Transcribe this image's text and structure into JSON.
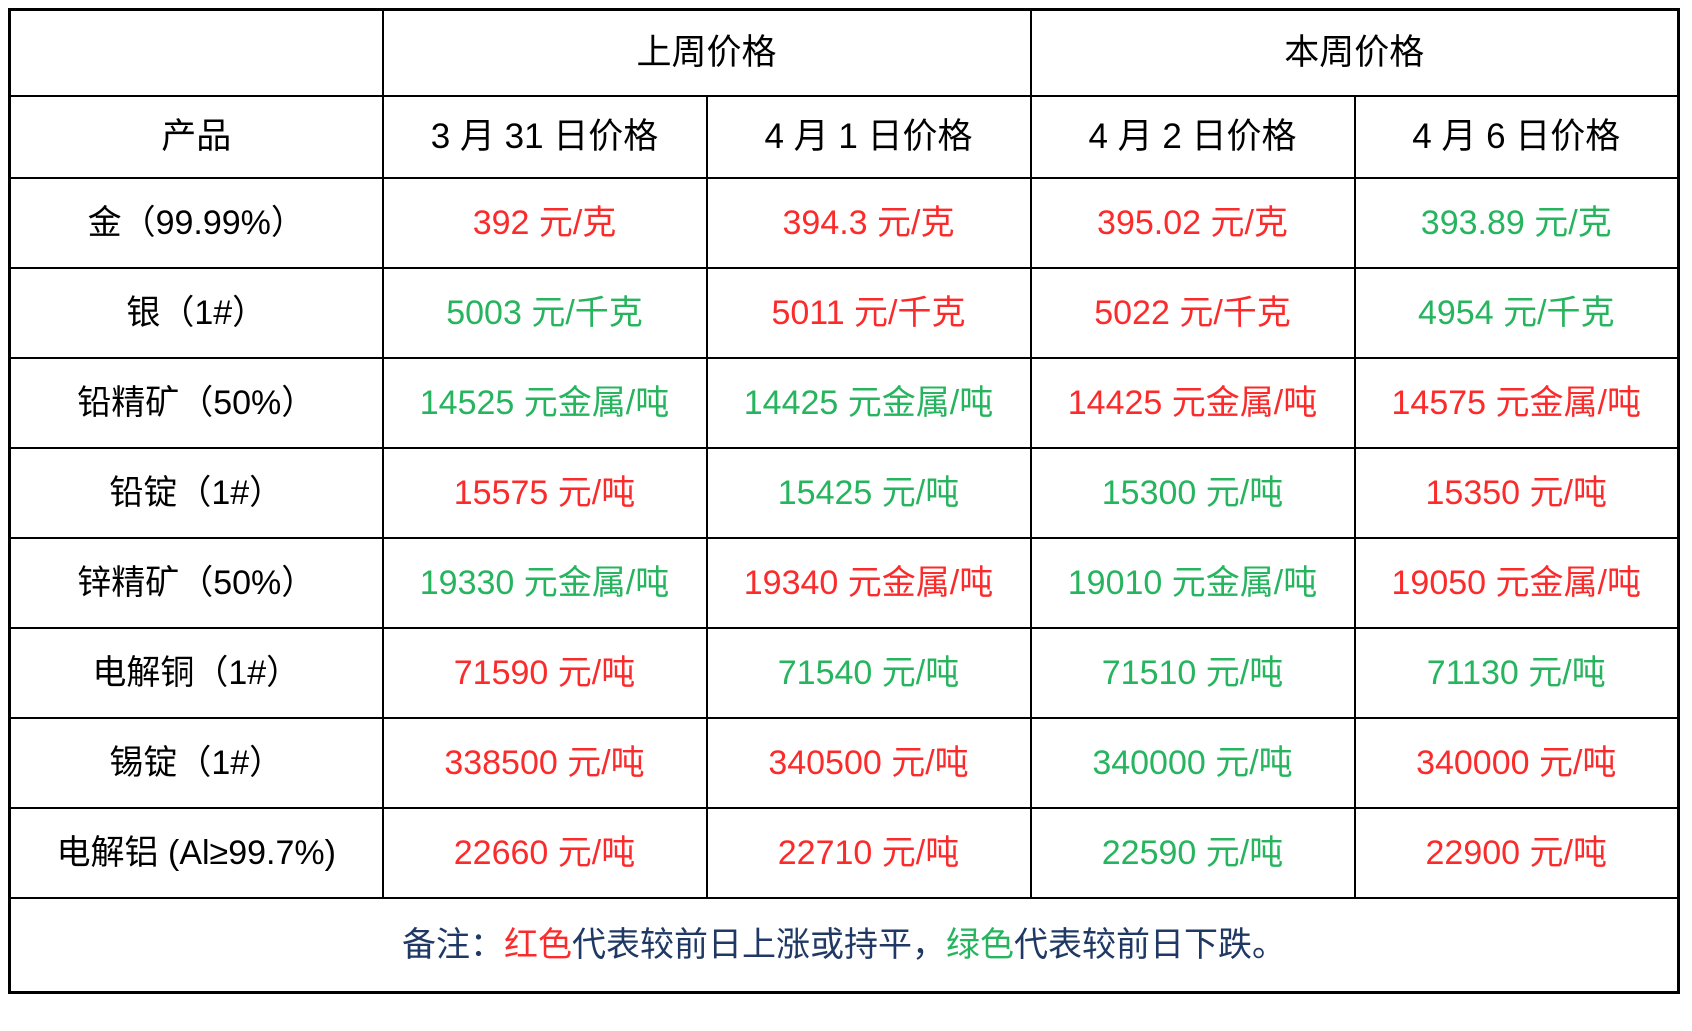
{
  "table": {
    "groups": {
      "last_week": "上周价格",
      "this_week": "本周价格"
    },
    "product_header": "产品",
    "date_headers": [
      "3 月 31 日价格",
      "4 月 1 日价格",
      "4 月 2 日价格",
      "4 月 6 日价格"
    ],
    "rows": [
      {
        "product": "金（99.99%）",
        "values": [
          {
            "text": "392 元/克",
            "trend": "up"
          },
          {
            "text": "394.3 元/克",
            "trend": "up"
          },
          {
            "text": "395.02 元/克",
            "trend": "up"
          },
          {
            "text": "393.89 元/克",
            "trend": "down"
          }
        ]
      },
      {
        "product": "银（1#）",
        "values": [
          {
            "text": "5003 元/千克",
            "trend": "down"
          },
          {
            "text": "5011 元/千克",
            "trend": "up"
          },
          {
            "text": "5022 元/千克",
            "trend": "up"
          },
          {
            "text": "4954 元/千克",
            "trend": "down"
          }
        ]
      },
      {
        "product": "铅精矿（50%）",
        "values": [
          {
            "text": "14525 元金属/吨",
            "trend": "down"
          },
          {
            "text": "14425 元金属/吨",
            "trend": "down"
          },
          {
            "text": "14425 元金属/吨",
            "trend": "up"
          },
          {
            "text": "14575 元金属/吨",
            "trend": "up"
          }
        ]
      },
      {
        "product": "铅锭（1#）",
        "values": [
          {
            "text": "15575 元/吨",
            "trend": "up"
          },
          {
            "text": "15425 元/吨",
            "trend": "down"
          },
          {
            "text": "15300 元/吨",
            "trend": "down"
          },
          {
            "text": "15350 元/吨",
            "trend": "up"
          }
        ]
      },
      {
        "product": "锌精矿（50%）",
        "values": [
          {
            "text": "19330 元金属/吨",
            "trend": "down"
          },
          {
            "text": "19340 元金属/吨",
            "trend": "up"
          },
          {
            "text": "19010 元金属/吨",
            "trend": "down"
          },
          {
            "text": "19050 元金属/吨",
            "trend": "up"
          }
        ]
      },
      {
        "product": "电解铜（1#）",
        "values": [
          {
            "text": "71590 元/吨",
            "trend": "up"
          },
          {
            "text": "71540 元/吨",
            "trend": "down"
          },
          {
            "text": "71510 元/吨",
            "trend": "down"
          },
          {
            "text": "71130 元/吨",
            "trend": "down"
          }
        ]
      },
      {
        "product": "锡锭（1#）",
        "values": [
          {
            "text": "338500 元/吨",
            "trend": "up"
          },
          {
            "text": "340500 元/吨",
            "trend": "up"
          },
          {
            "text": "340000 元/吨",
            "trend": "down"
          },
          {
            "text": "340000 元/吨",
            "trend": "up"
          }
        ]
      },
      {
        "product": "电解铝 (Al≥99.7%)",
        "values": [
          {
            "text": "22660 元/吨",
            "trend": "up"
          },
          {
            "text": "22710 元/吨",
            "trend": "up"
          },
          {
            "text": "22590 元/吨",
            "trend": "down"
          },
          {
            "text": "22900 元/吨",
            "trend": "up"
          }
        ]
      }
    ]
  },
  "note": {
    "prefix": "备注：",
    "red_label": "红色",
    "red_desc": "代表较前日上涨或持平，",
    "green_label": "绿色",
    "green_desc": "代表较前日下跌。"
  },
  "colors": {
    "up": "#fb2b2b",
    "down": "#27b45e",
    "note": "#1f3864"
  },
  "chart_data": {
    "type": "table",
    "column_groups": [
      {
        "label": "上周价格",
        "columns": [
          "3 月 31 日价格",
          "4 月 1 日价格"
        ]
      },
      {
        "label": "本周价格",
        "columns": [
          "4 月 2 日价格",
          "4 月 6 日价格"
        ]
      }
    ],
    "columns": [
      "产品",
      "3 月 31 日价格",
      "4 月 1 日价格",
      "4 月 2 日价格",
      "4 月 6 日价格"
    ],
    "rows": [
      [
        "金（99.99%）",
        "392 元/克",
        "394.3 元/克",
        "395.02 元/克",
        "393.89 元/克"
      ],
      [
        "银（1#）",
        "5003 元/千克",
        "5011 元/千克",
        "5022 元/千克",
        "4954 元/千克"
      ],
      [
        "铅精矿（50%）",
        "14525 元金属/吨",
        "14425 元金属/吨",
        "14425 元金属/吨",
        "14575 元金属/吨"
      ],
      [
        "铅锭（1#）",
        "15575 元/吨",
        "15425 元/吨",
        "15300 元/吨",
        "15350 元/吨"
      ],
      [
        "锌精矿（50%）",
        "19330 元金属/吨",
        "19340 元金属/吨",
        "19010 元金属/吨",
        "19050 元金属/吨"
      ],
      [
        "电解铜（1#）",
        "71590 元/吨",
        "71540 元/吨",
        "71510 元/吨",
        "71130 元/吨"
      ],
      [
        "锡锭（1#）",
        "338500 元/吨",
        "340500 元/吨",
        "340000 元/吨",
        "340000 元/吨"
      ],
      [
        "电解铝 (Al≥99.7%)",
        "22660 元/吨",
        "22710 元/吨",
        "22590 元/吨",
        "22900 元/吨"
      ]
    ],
    "cell_colors": [
      [
        "red",
        "red",
        "red",
        "green"
      ],
      [
        "green",
        "red",
        "red",
        "green"
      ],
      [
        "green",
        "green",
        "red",
        "red"
      ],
      [
        "red",
        "green",
        "green",
        "red"
      ],
      [
        "green",
        "red",
        "green",
        "red"
      ],
      [
        "red",
        "green",
        "green",
        "green"
      ],
      [
        "red",
        "red",
        "green",
        "red"
      ],
      [
        "red",
        "red",
        "green",
        "red"
      ]
    ],
    "note": "备注：红色代表较前日上涨或持平，绿色代表较前日下跌。",
    "legend": {
      "red": "较前日上涨或持平",
      "green": "较前日下跌"
    }
  }
}
